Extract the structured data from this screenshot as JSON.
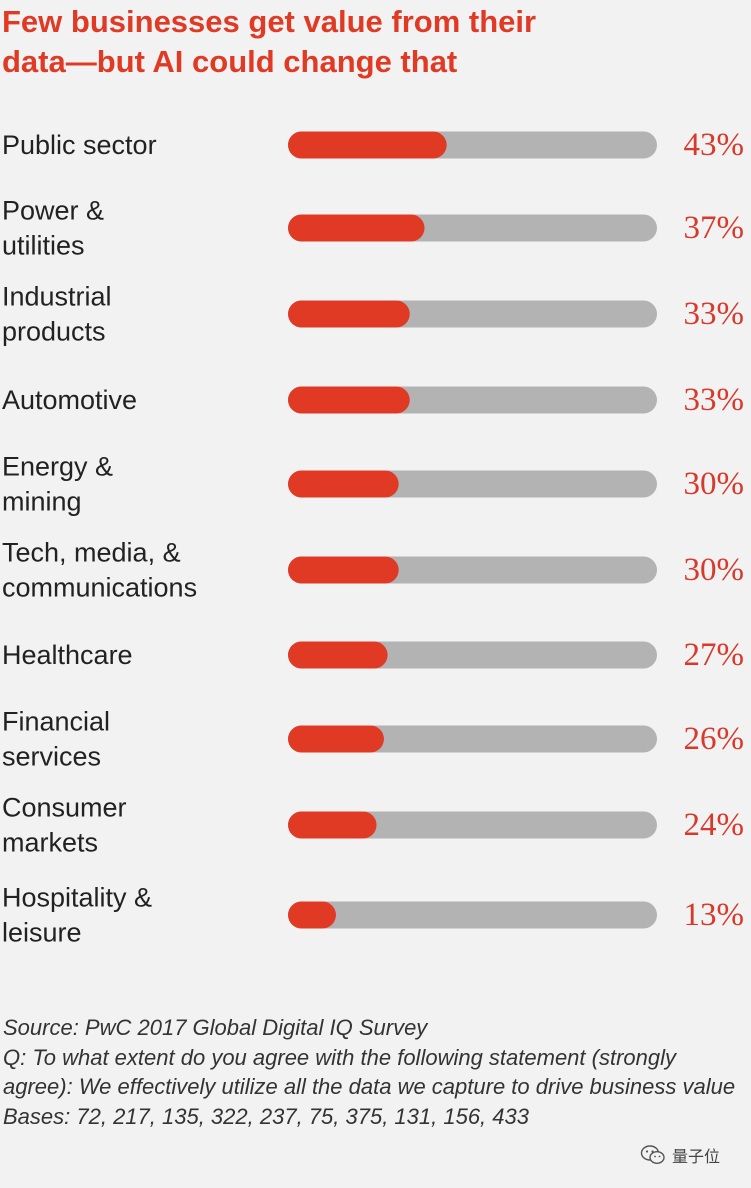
{
  "chart_data": {
    "type": "bar",
    "orientation": "horizontal",
    "title": "Few businesses get value from their\ndata—but AI could change that",
    "categories": [
      [
        "Public sector"
      ],
      [
        "Power &",
        "utilities"
      ],
      [
        "Industrial",
        "products"
      ],
      [
        "Automotive"
      ],
      [
        "Energy &",
        "mining"
      ],
      [
        "Tech, media, &",
        "communications"
      ],
      [
        "Healthcare"
      ],
      [
        "Financial",
        "services"
      ],
      [
        "Consumer",
        "markets"
      ],
      [
        "Hospitality &",
        "leisure"
      ]
    ],
    "values": [
      43,
      37,
      33,
      33,
      30,
      30,
      27,
      26,
      24,
      13
    ],
    "value_labels": [
      "43%",
      "37%",
      "33%",
      "33%",
      "30%",
      "30%",
      "27%",
      "26%",
      "24%",
      "13%"
    ],
    "xlim": [
      0,
      100
    ],
    "grid": false,
    "colors": {
      "bar_fill": "#e03a25",
      "bar_track": "#b3b3b3",
      "value_text": "#d8392b",
      "title_text": "#e03a25"
    }
  },
  "notes": {
    "source": "Source: PwC 2017 Global Digital IQ Survey",
    "question": "Q: To what extent do you agree with the following statement (strongly agree): We effectively utilize all the data we capture to drive business value",
    "bases": "Bases: 72, 217, 135, 322, 237, 75, 375, 131, 156, 433"
  },
  "watermark": {
    "icon": "wechat-icon",
    "text": "量子位"
  }
}
